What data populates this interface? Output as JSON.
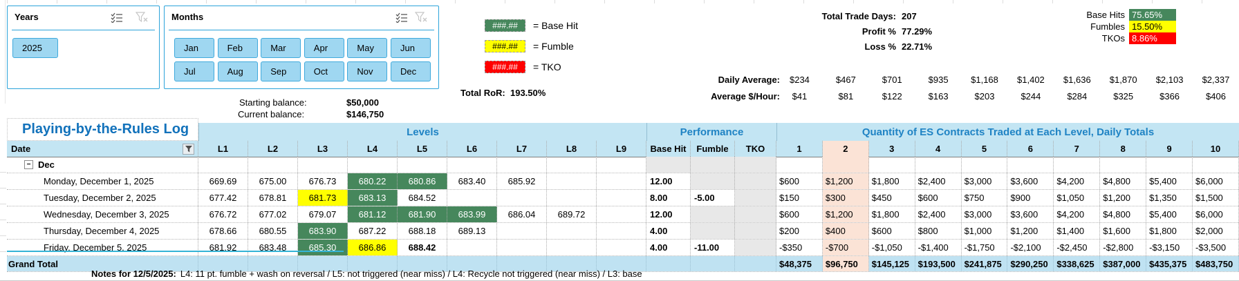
{
  "slicers": {
    "years": {
      "title": "Years",
      "items": [
        "2025"
      ]
    },
    "months": {
      "title": "Months",
      "items": [
        "Jan",
        "Feb",
        "Mar",
        "Apr",
        "May",
        "Jun",
        "Jul",
        "Aug",
        "Sep",
        "Oct",
        "Nov",
        "Dec"
      ]
    }
  },
  "legend": {
    "sample": "###.##",
    "items": [
      {
        "label": "= Base Hit",
        "color": "#46875C",
        "text_color": "#FFFFFF"
      },
      {
        "label": "= Fumble",
        "color": "#FFFF00",
        "text_color": "#000000"
      },
      {
        "label": "= TKO",
        "color": "#FF0000",
        "text_color": "#FFFFFF"
      }
    ]
  },
  "balances": {
    "starting_label": "Starting balance:",
    "starting_value": "$50,000",
    "current_label": "Current balance:",
    "current_value": "$146,750",
    "ror_label": "Total RoR:",
    "ror_value": "193.50%"
  },
  "stats": {
    "total_trade_days_label": "Total Trade Days:",
    "total_trade_days": "207",
    "profit_label": "Profit %",
    "profit": "77.29%",
    "loss_label": "Loss %",
    "loss": "22.71%",
    "outcome_rates": [
      {
        "label": "Base Hits",
        "value": "75.65%",
        "color": "#46875C",
        "text_color": "#FFFFFF"
      },
      {
        "label": "Fumbles",
        "value": "15.50%",
        "color": "#FFFF00",
        "text_color": "#000000"
      },
      {
        "label": "TKOs",
        "value": "8.86%",
        "color": "#FF0000",
        "text_color": "#FFFFFF"
      }
    ]
  },
  "averages": {
    "daily_label": "Daily Average:",
    "daily": [
      "$234",
      "$467",
      "$701",
      "$935",
      "$1,168",
      "$1,402",
      "$1,636",
      "$1,870",
      "$2,103",
      "$2,337"
    ],
    "hourly_label": "Average $/Hour:",
    "hourly": [
      "$41",
      "$81",
      "$122",
      "$163",
      "$203",
      "$244",
      "$284",
      "$325",
      "$366",
      "$406"
    ]
  },
  "table": {
    "title": "Playing-by-the-Rules Log",
    "groups": [
      {
        "label": "Levels"
      },
      {
        "label": "Performance"
      },
      {
        "label": "Quantity of ES Contracts Traded at Each Level, Daily Totals"
      }
    ],
    "date_header": "Date",
    "level_headers": [
      "L1",
      "L2",
      "L3",
      "L4",
      "L5",
      "L6",
      "L7",
      "L8",
      "L9"
    ],
    "perf_headers": [
      "Base Hit",
      "Fumble",
      "TKO"
    ],
    "qty_headers": [
      "1",
      "2",
      "3",
      "4",
      "5",
      "6",
      "7",
      "8",
      "9",
      "10"
    ],
    "group_row": {
      "label": "Dec"
    },
    "rows": [
      {
        "date": "Monday, December 1, 2025",
        "levels": [
          {
            "v": "669.69"
          },
          {
            "v": "675.00"
          },
          {
            "v": "676.73"
          },
          {
            "v": "680.22",
            "s": "green"
          },
          {
            "v": "680.86",
            "s": "green"
          },
          {
            "v": "683.40"
          },
          {
            "v": "685.92"
          },
          {
            "v": ""
          },
          {
            "v": ""
          }
        ],
        "base_hit": "12.00",
        "fumble": "",
        "tko": "",
        "qty": [
          "$600",
          "$1,200",
          "$1,800",
          "$2,400",
          "$3,000",
          "$3,600",
          "$4,200",
          "$4,800",
          "$5,400",
          "$6,000"
        ]
      },
      {
        "date": "Tuesday, December 2, 2025",
        "levels": [
          {
            "v": "677.42"
          },
          {
            "v": "678.81"
          },
          {
            "v": "681.73",
            "s": "yellow"
          },
          {
            "v": "683.13",
            "s": "green"
          },
          {
            "v": "684.52"
          },
          {
            "v": ""
          },
          {
            "v": ""
          },
          {
            "v": ""
          },
          {
            "v": ""
          }
        ],
        "base_hit": "8.00",
        "fumble": "-5.00",
        "tko": "",
        "qty": [
          "$150",
          "$300",
          "$450",
          "$600",
          "$750",
          "$900",
          "$1,050",
          "$1,200",
          "$1,350",
          "$1,500"
        ]
      },
      {
        "date": "Wednesday, December 3, 2025",
        "levels": [
          {
            "v": "676.72"
          },
          {
            "v": "677.02"
          },
          {
            "v": "679.07"
          },
          {
            "v": "681.12",
            "s": "green"
          },
          {
            "v": "681.90",
            "s": "green"
          },
          {
            "v": "683.99",
            "s": "green"
          },
          {
            "v": "686.04"
          },
          {
            "v": "689.72"
          },
          {
            "v": ""
          }
        ],
        "base_hit": "12.00",
        "fumble": "",
        "tko": "",
        "qty": [
          "$600",
          "$1,200",
          "$1,800",
          "$2,400",
          "$3,000",
          "$3,600",
          "$4,200",
          "$4,800",
          "$5,400",
          "$6,000"
        ]
      },
      {
        "date": "Thursday, December 4, 2025",
        "levels": [
          {
            "v": "678.66"
          },
          {
            "v": "680.55"
          },
          {
            "v": "683.90",
            "s": "green"
          },
          {
            "v": "687.22"
          },
          {
            "v": "688.18"
          },
          {
            "v": "689.13"
          },
          {
            "v": ""
          },
          {
            "v": ""
          },
          {
            "v": ""
          }
        ],
        "base_hit": "4.00",
        "fumble": "",
        "tko": "",
        "qty": [
          "$200",
          "$400",
          "$600",
          "$800",
          "$1,000",
          "$1,200",
          "$1,400",
          "$1,600",
          "$1,800",
          "$2,000"
        ]
      },
      {
        "date": "Friday, December 5, 2025",
        "levels": [
          {
            "v": "681.92"
          },
          {
            "v": "683.48"
          },
          {
            "v": "685.30",
            "s": "green"
          },
          {
            "v": "686.86",
            "s": "yellow"
          },
          {
            "v": "688.42",
            "s": "bold"
          },
          {
            "v": ""
          },
          {
            "v": ""
          },
          {
            "v": ""
          },
          {
            "v": ""
          }
        ],
        "base_hit": "4.00",
        "fumble": "-11.00",
        "tko": "",
        "qty": [
          "-$350",
          "-$700",
          "-$1,050",
          "-$1,400",
          "-$1,750",
          "-$2,100",
          "-$2,450",
          "-$2,800",
          "-$3,150",
          "-$3,500"
        ]
      }
    ],
    "grand_total": {
      "label": "Grand Total",
      "qty": [
        "$48,375",
        "$96,750",
        "$145,125",
        "$193,500",
        "$241,875",
        "$290,250",
        "$338,625",
        "$387,000",
        "$435,375",
        "$483,750"
      ]
    }
  },
  "notes": {
    "label": "Notes for 12/5/2025:",
    "text": "L4: 11 pt. fumble + wash on reversal / L5: not triggered (near miss) / L4: Recycle not triggered (near miss) / L3: base"
  },
  "colors": {
    "accent_blue": "#2BA3DA",
    "header_fill": "#C3E5F3",
    "heading_text": "#1F83C4",
    "title_text": "#1272BB",
    "base_hit_green": "#46875C",
    "fumble_yellow": "#FFFF00",
    "tko_red": "#FF0000",
    "qty2_highlight": "#FBE3D6",
    "empty_perf_gray": "#E8E8E8",
    "grand_total_fill": "#BFE2F2",
    "slicer_button_fill": "#9FD7F1"
  }
}
